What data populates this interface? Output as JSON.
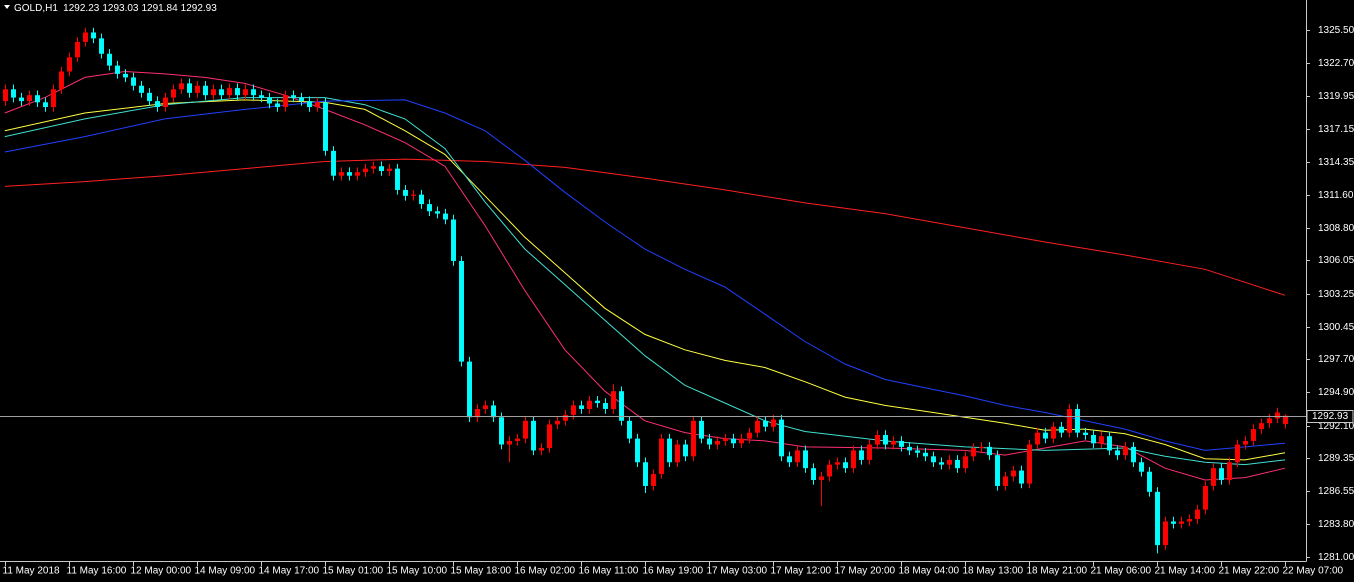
{
  "chart_data": {
    "type": "candlestick",
    "title": "GOLD,H1",
    "up_color": "#ff0000",
    "down_color": "#00ffff",
    "open": [
      1319.5,
      1320.5,
      1319.8,
      1319.5,
      1320.0,
      1319.4,
      1319.0,
      1320.5,
      1322.0,
      1323.2,
      1324.5,
      1325.3,
      1324.8,
      1323.5,
      1322.5,
      1321.8,
      1321.5,
      1320.8,
      1320.2,
      1319.5,
      1319.0,
      1319.8,
      1320.5,
      1321.0,
      1320.2,
      1320.8,
      1320.0,
      1320.5,
      1320.0,
      1320.6,
      1320.0,
      1320.5,
      1320.0,
      1319.8,
      1319.3,
      1319.0,
      1320.0,
      1319.8,
      1319.5,
      1319.0,
      1319.4,
      1315.3,
      1313.2,
      1313.5,
      1313.2,
      1313.5,
      1313.8,
      1314.0,
      1313.6,
      1313.8,
      1312.0,
      1311.5,
      1311.6,
      1310.8,
      1310.2,
      1310.0,
      1309.5,
      1306.0,
      1297.5,
      1292.8,
      1293.5,
      1293.8,
      1292.8,
      1290.5,
      1290.8,
      1291.0,
      1292.5,
      1290.0,
      1290.2,
      1292.2,
      1292.5,
      1293.0,
      1293.8,
      1293.5,
      1294.2,
      1294.0,
      1293.5,
      1295.0,
      1292.5,
      1291.0,
      1289.0,
      1287.0,
      1288.0,
      1291.0,
      1289.0,
      1290.5,
      1289.5,
      1292.5,
      1291.0,
      1290.5,
      1290.8,
      1291.0,
      1290.6,
      1291.0,
      1291.5,
      1292.5,
      1292.0,
      1292.6,
      1289.5,
      1289.0,
      1290.0,
      1288.5,
      1287.5,
      1287.8,
      1288.8,
      1289.0,
      1288.5,
      1290.0,
      1289.2,
      1290.5,
      1291.3,
      1290.5,
      1290.8,
      1290.3,
      1290.0,
      1289.8,
      1289.5,
      1289.0,
      1288.8,
      1289.2,
      1288.5,
      1289.5,
      1290.2,
      1290.3,
      1289.6,
      1287.0,
      1287.8,
      1288.3,
      1287.2,
      1290.5,
      1291.5,
      1291.0,
      1292.0,
      1291.5,
      1293.5,
      1291.5,
      1291.3,
      1290.6,
      1291.2,
      1290.0,
      1289.6,
      1290.3,
      1289.0,
      1288.2,
      1286.5,
      1282.0,
      1284.0,
      1283.8,
      1284.0,
      1284.2,
      1285.0,
      1287.0,
      1288.5,
      1287.5,
      1289.0,
      1290.5,
      1290.8,
      1291.8,
      1292.3,
      1292.7,
      1292.23
    ],
    "high": [
      1320.9,
      1320.9,
      1320.2,
      1320.4,
      1320.4,
      1319.8,
      1320.9,
      1322.4,
      1323.6,
      1324.9,
      1325.7,
      1325.7,
      1325.2,
      1323.9,
      1322.9,
      1322.2,
      1321.9,
      1321.2,
      1320.6,
      1319.9,
      1320.2,
      1320.9,
      1321.4,
      1321.4,
      1321.2,
      1321.2,
      1320.9,
      1320.9,
      1321.0,
      1321.0,
      1320.9,
      1320.9,
      1320.4,
      1320.2,
      1319.7,
      1320.4,
      1320.4,
      1320.2,
      1319.9,
      1319.8,
      1319.8,
      1315.7,
      1313.9,
      1313.9,
      1313.9,
      1314.2,
      1314.4,
      1314.4,
      1314.2,
      1314.2,
      1312.4,
      1312.0,
      1312.0,
      1311.2,
      1310.6,
      1310.4,
      1309.9,
      1306.4,
      1297.9,
      1293.9,
      1294.2,
      1294.2,
      1293.2,
      1291.2,
      1291.4,
      1292.9,
      1292.9,
      1290.6,
      1292.6,
      1292.9,
      1293.4,
      1294.2,
      1294.2,
      1294.6,
      1294.6,
      1294.4,
      1295.6,
      1295.4,
      1292.9,
      1291.4,
      1289.4,
      1288.4,
      1291.4,
      1291.4,
      1290.9,
      1290.9,
      1292.9,
      1292.9,
      1291.4,
      1291.2,
      1291.4,
      1291.4,
      1291.4,
      1291.9,
      1292.9,
      1292.9,
      1293.0,
      1293.0,
      1289.9,
      1290.4,
      1290.4,
      1288.9,
      1288.2,
      1289.2,
      1289.4,
      1289.4,
      1290.4,
      1290.4,
      1290.9,
      1291.7,
      1291.7,
      1291.2,
      1291.2,
      1290.7,
      1290.4,
      1290.2,
      1289.9,
      1289.4,
      1289.6,
      1289.6,
      1289.9,
      1290.6,
      1290.7,
      1290.7,
      1290.0,
      1288.2,
      1288.7,
      1288.7,
      1290.9,
      1291.9,
      1291.9,
      1292.4,
      1292.4,
      1293.9,
      1293.9,
      1291.9,
      1291.7,
      1291.6,
      1291.6,
      1290.4,
      1290.7,
      1290.7,
      1289.4,
      1288.6,
      1286.9,
      1284.4,
      1284.4,
      1284.4,
      1284.6,
      1285.4,
      1287.4,
      1288.9,
      1288.9,
      1289.4,
      1290.9,
      1291.2,
      1292.2,
      1292.7,
      1293.1,
      1293.6,
      1293.03
    ],
    "low": [
      1319.1,
      1319.4,
      1319.1,
      1319.1,
      1319.0,
      1318.6,
      1318.6,
      1320.1,
      1321.6,
      1322.8,
      1324.1,
      1324.4,
      1323.1,
      1322.1,
      1321.4,
      1321.1,
      1320.4,
      1319.8,
      1319.1,
      1318.6,
      1318.6,
      1319.4,
      1320.1,
      1319.8,
      1319.8,
      1319.6,
      1319.6,
      1319.6,
      1319.6,
      1319.6,
      1319.6,
      1319.6,
      1319.4,
      1318.9,
      1318.6,
      1318.6,
      1319.4,
      1319.1,
      1318.6,
      1318.6,
      1314.9,
      1312.8,
      1312.8,
      1312.8,
      1312.8,
      1313.1,
      1313.4,
      1313.2,
      1313.2,
      1311.6,
      1311.1,
      1311.1,
      1310.4,
      1309.8,
      1309.6,
      1309.1,
      1305.6,
      1297.1,
      1292.4,
      1292.4,
      1293.1,
      1292.4,
      1290.1,
      1289.0,
      1290.4,
      1290.6,
      1289.6,
      1289.6,
      1289.8,
      1291.8,
      1292.1,
      1292.6,
      1293.1,
      1293.1,
      1293.6,
      1293.1,
      1293.1,
      1292.1,
      1290.6,
      1288.6,
      1286.4,
      1286.6,
      1287.6,
      1288.6,
      1288.6,
      1289.1,
      1289.1,
      1290.6,
      1290.1,
      1290.1,
      1290.4,
      1290.2,
      1290.2,
      1290.6,
      1291.1,
      1291.6,
      1291.6,
      1289.1,
      1288.6,
      1288.6,
      1288.1,
      1287.1,
      1285.3,
      1287.4,
      1288.4,
      1288.1,
      1288.1,
      1288.8,
      1288.8,
      1290.1,
      1290.1,
      1290.1,
      1289.9,
      1289.6,
      1289.4,
      1289.1,
      1288.6,
      1288.4,
      1288.4,
      1288.1,
      1288.1,
      1289.1,
      1289.8,
      1289.2,
      1286.6,
      1286.6,
      1287.4,
      1286.8,
      1286.8,
      1290.1,
      1290.6,
      1290.6,
      1291.1,
      1291.1,
      1291.1,
      1290.9,
      1290.2,
      1290.2,
      1289.6,
      1289.2,
      1289.2,
      1288.6,
      1287.8,
      1286.1,
      1281.3,
      1281.6,
      1283.4,
      1283.4,
      1283.6,
      1283.8,
      1284.6,
      1286.6,
      1287.1,
      1287.1,
      1288.6,
      1290.1,
      1290.4,
      1291.4,
      1291.9,
      1292.3,
      1291.84
    ],
    "close": [
      1320.5,
      1319.8,
      1319.5,
      1320.0,
      1319.4,
      1319.0,
      1320.5,
      1322.0,
      1323.2,
      1324.5,
      1325.3,
      1324.8,
      1323.5,
      1322.5,
      1321.8,
      1321.5,
      1320.8,
      1320.2,
      1319.5,
      1319.0,
      1319.8,
      1320.5,
      1321.0,
      1320.2,
      1320.8,
      1320.0,
      1320.5,
      1320.0,
      1320.6,
      1320.0,
      1320.5,
      1320.0,
      1319.8,
      1319.3,
      1319.0,
      1320.0,
      1319.8,
      1319.5,
      1319.0,
      1319.4,
      1315.3,
      1313.2,
      1313.5,
      1313.2,
      1313.5,
      1313.8,
      1314.0,
      1313.6,
      1313.8,
      1312.0,
      1311.5,
      1311.6,
      1310.8,
      1310.2,
      1310.0,
      1309.5,
      1306.0,
      1297.5,
      1292.8,
      1293.5,
      1293.8,
      1292.8,
      1290.5,
      1290.8,
      1291.0,
      1292.5,
      1290.0,
      1290.2,
      1292.2,
      1292.5,
      1293.0,
      1293.8,
      1293.5,
      1294.2,
      1294.0,
      1293.5,
      1295.0,
      1292.5,
      1291.0,
      1289.0,
      1287.0,
      1288.0,
      1291.0,
      1289.0,
      1290.5,
      1289.5,
      1292.5,
      1291.0,
      1290.5,
      1290.8,
      1291.0,
      1290.6,
      1291.0,
      1291.5,
      1292.5,
      1292.0,
      1292.6,
      1289.5,
      1289.0,
      1290.0,
      1288.5,
      1287.5,
      1287.8,
      1288.8,
      1289.0,
      1288.5,
      1290.0,
      1289.2,
      1290.5,
      1291.3,
      1290.5,
      1290.8,
      1290.3,
      1290.0,
      1289.8,
      1289.5,
      1289.0,
      1288.8,
      1289.2,
      1288.5,
      1289.5,
      1290.2,
      1290.3,
      1289.6,
      1287.0,
      1287.8,
      1288.3,
      1287.2,
      1290.5,
      1291.5,
      1291.0,
      1292.0,
      1291.5,
      1293.5,
      1291.5,
      1291.3,
      1290.6,
      1291.2,
      1290.0,
      1289.6,
      1290.3,
      1289.0,
      1288.2,
      1286.5,
      1282.0,
      1284.0,
      1283.8,
      1284.0,
      1284.2,
      1285.0,
      1287.0,
      1288.5,
      1287.5,
      1289.0,
      1290.5,
      1290.8,
      1291.8,
      1292.3,
      1292.7,
      1293.2,
      1292.93
    ],
    "lines": [
      {
        "color": "#ff2020",
        "x": [
          0,
          10,
          20,
          30,
          40,
          50,
          60,
          70,
          80,
          90,
          100,
          110,
          120,
          130,
          140,
          150,
          160
        ],
        "values": [
          1312.3,
          1312.7,
          1313.2,
          1313.8,
          1314.4,
          1314.6,
          1314.4,
          1313.9,
          1313.0,
          1312.0,
          1310.9,
          1310.0,
          1308.8,
          1307.6,
          1306.5,
          1305.3,
          1303.1
        ]
      },
      {
        "color": "#ff3070",
        "x": [
          0,
          5,
          10,
          15,
          20,
          25,
          30,
          35,
          40,
          45,
          50,
          55,
          60,
          65,
          70,
          75,
          80,
          85,
          90,
          95,
          100,
          110,
          120,
          125,
          130,
          135,
          140,
          145,
          150,
          155,
          160
        ],
        "values": [
          1318.5,
          1319.8,
          1321.5,
          1322.0,
          1321.8,
          1321.5,
          1321.0,
          1320.0,
          1318.8,
          1317.5,
          1316.0,
          1314.0,
          1309.0,
          1303.5,
          1298.5,
          1295.0,
          1292.5,
          1291.5,
          1291.0,
          1290.8,
          1290.3,
          1290.2,
          1290.0,
          1289.6,
          1290.2,
          1290.8,
          1290.3,
          1288.5,
          1287.5,
          1287.7,
          1288.5
        ]
      },
      {
        "color": "#ffff40",
        "x": [
          0,
          10,
          20,
          30,
          40,
          45,
          50,
          55,
          60,
          65,
          70,
          75,
          80,
          85,
          90,
          95,
          100,
          105,
          110,
          115,
          120,
          125,
          130,
          135,
          140,
          145,
          150,
          155,
          160
        ],
        "values": [
          1317.0,
          1318.5,
          1319.3,
          1319.6,
          1319.4,
          1318.8,
          1317.0,
          1315.0,
          1311.5,
          1308.0,
          1305.0,
          1302.0,
          1299.8,
          1298.5,
          1297.6,
          1297.0,
          1295.8,
          1294.5,
          1293.8,
          1293.3,
          1292.8,
          1292.3,
          1291.7,
          1291.8,
          1291.4,
          1290.5,
          1289.3,
          1289.2,
          1289.8
        ]
      },
      {
        "color": "#40e0d0",
        "x": [
          0,
          10,
          20,
          30,
          40,
          45,
          50,
          55,
          60,
          65,
          70,
          75,
          80,
          85,
          90,
          95,
          100,
          110,
          120,
          130,
          140,
          145,
          150,
          155,
          160
        ],
        "values": [
          1316.5,
          1318.0,
          1319.2,
          1319.8,
          1319.8,
          1319.2,
          1318.0,
          1315.5,
          1311.0,
          1307.0,
          1304.0,
          1301.0,
          1298.0,
          1295.5,
          1294.0,
          1292.5,
          1291.6,
          1290.8,
          1290.3,
          1290.0,
          1290.2,
          1289.5,
          1289.0,
          1288.8,
          1289.2
        ]
      },
      {
        "color": "#2040ff",
        "x": [
          0,
          10,
          20,
          30,
          40,
          50,
          55,
          60,
          65,
          70,
          75,
          80,
          85,
          90,
          95,
          100,
          105,
          110,
          115,
          120,
          125,
          130,
          135,
          140,
          145,
          150,
          155,
          160
        ],
        "values": [
          1315.2,
          1316.5,
          1318.0,
          1318.8,
          1319.5,
          1319.6,
          1318.5,
          1317.0,
          1314.5,
          1311.8,
          1309.3,
          1307.0,
          1305.3,
          1303.8,
          1301.5,
          1299.2,
          1297.3,
          1296.0,
          1295.3,
          1294.6,
          1293.8,
          1293.2,
          1292.5,
          1291.8,
          1290.8,
          1290.0,
          1290.3,
          1290.6
        ]
      }
    ],
    "xlim": [
      -0.6,
      162.5
    ],
    "xticks": [
      {
        "value": 0,
        "label": "11 May 2018"
      },
      {
        "value": 8,
        "label": "11 May 16:00"
      },
      {
        "value": 16,
        "label": "12 May 00:00"
      },
      {
        "value": 24,
        "label": "14 May 09:00"
      },
      {
        "value": 32,
        "label": "14 May 17:00"
      },
      {
        "value": 40,
        "label": "15 May 01:00"
      },
      {
        "value": 48,
        "label": "15 May 10:00"
      },
      {
        "value": 56,
        "label": "15 May 18:00"
      },
      {
        "value": 64,
        "label": "16 May 02:00"
      },
      {
        "value": 72,
        "label": "16 May 11:00"
      },
      {
        "value": 80,
        "label": "16 May 19:00"
      },
      {
        "value": 88,
        "label": "17 May 03:00"
      },
      {
        "value": 96,
        "label": "17 May 12:00"
      },
      {
        "value": 104,
        "label": "17 May 20:00"
      },
      {
        "value": 112,
        "label": "18 May 04:00"
      },
      {
        "value": 120,
        "label": "18 May 13:00"
      },
      {
        "value": 128,
        "label": "18 May 21:00"
      },
      {
        "value": 136,
        "label": "21 May 06:00"
      },
      {
        "value": 144,
        "label": "21 May 14:00"
      },
      {
        "value": 152,
        "label": "21 May 22:00"
      },
      {
        "value": 160,
        "label": "22 May 07:00"
      }
    ],
    "ylim": [
      1280.66,
      1328.04
    ],
    "yticks": [
      {
        "value": 1325.5,
        "label": "1325.50"
      },
      {
        "value": 1322.7,
        "label": "1322.70"
      },
      1319.95,
      1317.15,
      1314.35,
      {
        "value": 1311.6,
        "label": "1311.60"
      },
      {
        "value": 1308.8,
        "label": "1308.80"
      },
      1306.05,
      1303.25,
      1300.45,
      {
        "value": 1297.7,
        "label": "1297.70"
      },
      {
        "value": 1294.9,
        "label": "1294.90"
      },
      {
        "value": 1292.1,
        "label": "1292.10"
      },
      1289.35,
      1286.55,
      {
        "value": 1283.8,
        "label": "1283.80"
      },
      {
        "value": 1281.0,
        "label": "1281.00"
      }
    ],
    "grid": false,
    "price_line": true
  }
}
